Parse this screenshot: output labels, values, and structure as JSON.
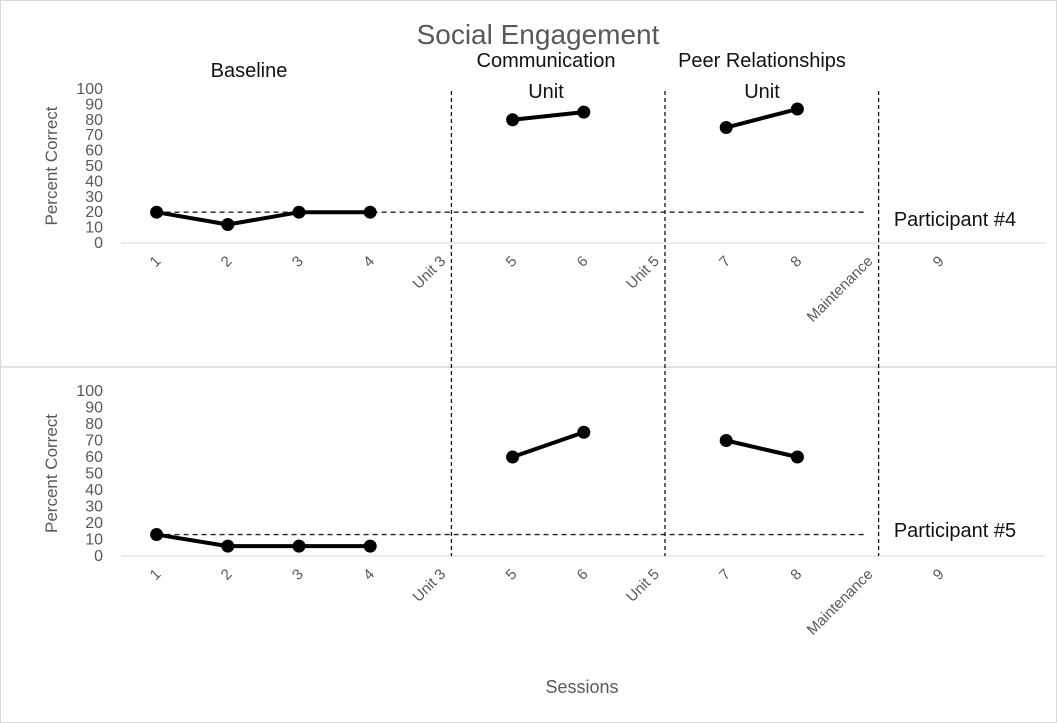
{
  "chart_data": {
    "type": "line",
    "title": "Social Engagement",
    "xlabel": "Sessions",
    "ylabel": "Percent Correct",
    "ylim": [
      0,
      100
    ],
    "yticks": [
      0,
      10,
      20,
      30,
      40,
      50,
      60,
      70,
      80,
      90,
      100
    ],
    "categories": [
      "1",
      "2",
      "3",
      "4",
      "Unit 3",
      "5",
      "6",
      "Unit 5",
      "7",
      "8",
      "Maintenance",
      "9"
    ],
    "phase_labels": [
      {
        "lines": [
          "Baseline"
        ]
      },
      {
        "lines": [
          "Communication",
          "Unit"
        ]
      },
      {
        "lines": [
          "Peer Relationships",
          "Unit"
        ]
      }
    ],
    "phase_change_categories": [
      "Unit 3",
      "Unit 5",
      "Maintenance"
    ],
    "panels": [
      {
        "participant": "Participant #4",
        "trend_line_value": 20,
        "segments": [
          {
            "categories": [
              "1",
              "2",
              "3",
              "4"
            ],
            "values": [
              20,
              12,
              20,
              20
            ]
          },
          {
            "categories": [
              "5",
              "6"
            ],
            "values": [
              80,
              85
            ]
          },
          {
            "categories": [
              "7",
              "8"
            ],
            "values": [
              75,
              87
            ]
          }
        ]
      },
      {
        "participant": "Participant #5",
        "trend_line_value": 13,
        "segments": [
          {
            "categories": [
              "1",
              "2",
              "3",
              "4"
            ],
            "values": [
              13,
              6,
              6,
              6
            ]
          },
          {
            "categories": [
              "5",
              "6"
            ],
            "values": [
              60,
              75
            ]
          },
          {
            "categories": [
              "7",
              "8"
            ],
            "values": [
              70,
              60
            ]
          }
        ]
      }
    ],
    "grid": false,
    "colors": {
      "data": "#000000",
      "axis_text": "#595959",
      "phase_line": "#000000"
    }
  }
}
